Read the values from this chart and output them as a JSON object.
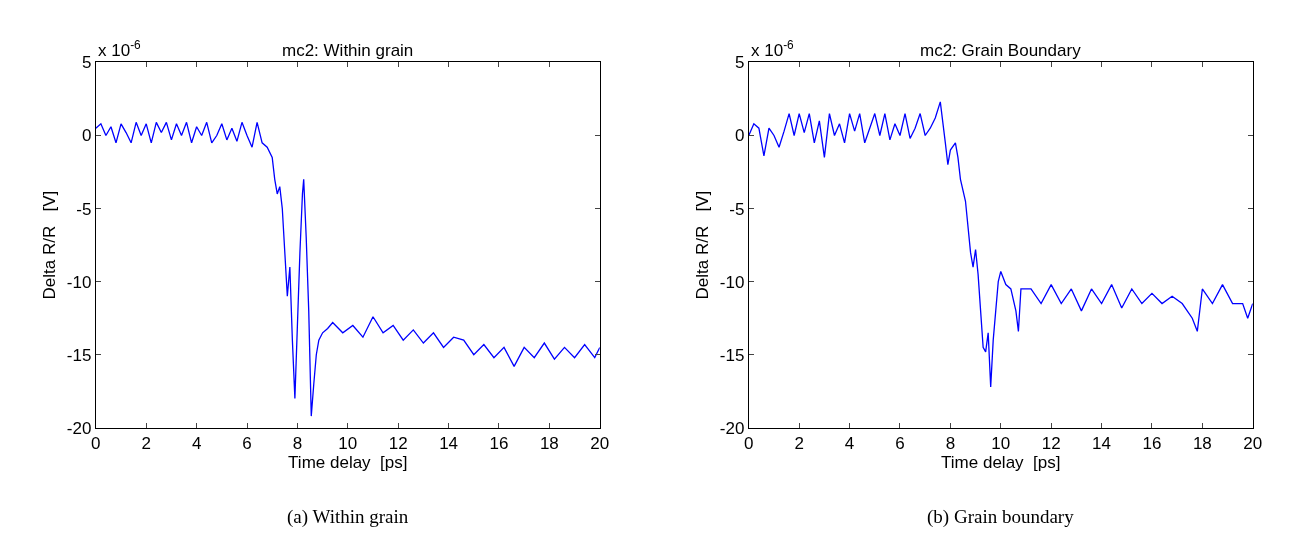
{
  "chart_data": [
    {
      "type": "line",
      "title": "mc2: Within grain",
      "xlabel": "Time delay  [ps]",
      "ylabel": "Delta R/R   [V]",
      "annotations": [
        "x 10$^{-6}$",
        "(a) Within grain"
      ],
      "xlim": [
        0,
        20
      ],
      "xticks": [
        0,
        2,
        4,
        6,
        8,
        10,
        12,
        14,
        16,
        18,
        20
      ],
      "ylim": [
        -20,
        5
      ],
      "yticks": [
        -20,
        -15,
        -10,
        -5,
        0,
        5
      ],
      "marker": "none",
      "line_style": "solid",
      "series": [
        {
          "color": "#0000ff",
          "x": [
            0,
            0.2,
            0.4,
            0.6,
            0.8,
            1.0,
            1.2,
            1.4,
            1.6,
            1.8,
            2.0,
            2.2,
            2.4,
            2.6,
            2.8,
            3.0,
            3.2,
            3.4,
            3.6,
            3.8,
            4.0,
            4.2,
            4.4,
            4.6,
            4.8,
            5.0,
            5.2,
            5.4,
            5.6,
            5.8,
            6.0,
            6.2,
            6.4,
            6.6,
            6.8,
            7.0,
            7.1,
            7.2,
            7.3,
            7.4,
            7.5,
            7.6,
            7.7,
            7.8,
            7.9,
            8.0,
            8.1,
            8.2,
            8.25,
            8.35,
            8.45,
            8.55,
            8.65,
            8.75,
            8.85,
            9.0,
            9.2,
            9.4,
            9.8,
            10.2,
            10.6,
            11.0,
            11.4,
            11.8,
            12.2,
            12.6,
            13.0,
            13.4,
            13.8,
            14.2,
            14.6,
            15.0,
            15.4,
            15.8,
            16.2,
            16.6,
            17.0,
            17.4,
            17.8,
            18.2,
            18.6,
            19.0,
            19.4,
            19.8,
            20.0
          ],
          "values": [
            0.5,
            0.8,
            0,
            0.6,
            -0.5,
            0.8,
            0.2,
            -0.5,
            0.9,
            0,
            0.8,
            -0.5,
            0.9,
            0.2,
            0.9,
            -0.3,
            0.8,
            0,
            0.9,
            -0.5,
            0.6,
            0,
            0.9,
            -0.5,
            0,
            0.8,
            -0.3,
            0.5,
            -0.4,
            0.9,
            0,
            -0.8,
            0.9,
            -0.5,
            -0.8,
            -1.5,
            -3,
            -4,
            -3.5,
            -5,
            -8,
            -11,
            -9,
            -14,
            -18,
            -13,
            -8,
            -4,
            -3,
            -7,
            -12,
            -19.2,
            -17,
            -15,
            -14,
            -13.5,
            -13.2,
            -12.8,
            -13.5,
            -13,
            -13.8,
            -12.4,
            -13.5,
            -13,
            -14,
            -13.3,
            -14.2,
            -13.5,
            -14.5,
            -13.8,
            -14,
            -15,
            -14.3,
            -15.2,
            -14.5,
            -15.8,
            -14.5,
            -15.2,
            -14.2,
            -15.3,
            -14.5,
            -15.2,
            -14.3,
            -15.2,
            -14.5
          ]
        }
      ]
    },
    {
      "type": "line",
      "title": "mc2: Grain Boundary",
      "xlabel": "Time delay  [ps]",
      "ylabel": "Delta R/R   [V]",
      "annotations": [
        "x 10$^{-6}$",
        "(b) Grain boundary"
      ],
      "xlim": [
        0,
        20
      ],
      "xticks": [
        0,
        2,
        4,
        6,
        8,
        10,
        12,
        14,
        16,
        18,
        20
      ],
      "ylim": [
        -20,
        5
      ],
      "yticks": [
        -20,
        -15,
        -10,
        -5,
        0,
        5
      ],
      "marker": "none",
      "line_style": "solid",
      "series": [
        {
          "color": "#0000ff",
          "x": [
            0,
            0.2,
            0.4,
            0.6,
            0.8,
            1.0,
            1.2,
            1.4,
            1.6,
            1.8,
            2.0,
            2.2,
            2.4,
            2.6,
            2.8,
            3.0,
            3.2,
            3.4,
            3.6,
            3.8,
            4.0,
            4.2,
            4.4,
            4.6,
            4.8,
            5.0,
            5.2,
            5.4,
            5.6,
            5.8,
            6.0,
            6.2,
            6.4,
            6.6,
            6.8,
            7.0,
            7.2,
            7.4,
            7.6,
            7.8,
            7.9,
            8.0,
            8.2,
            8.3,
            8.4,
            8.6,
            8.8,
            8.9,
            9.0,
            9.1,
            9.2,
            9.3,
            9.4,
            9.5,
            9.6,
            9.7,
            9.8,
            9.9,
            10.0,
            10.2,
            10.4,
            10.6,
            10.7,
            10.8,
            11.2,
            11.6,
            12.0,
            12.4,
            12.8,
            13.2,
            13.6,
            14.0,
            14.4,
            14.8,
            15.2,
            15.6,
            16.0,
            16.4,
            16.8,
            17.2,
            17.6,
            17.8,
            18.0,
            18.4,
            18.8,
            19.2,
            19.6,
            19.8,
            20.0
          ],
          "values": [
            0,
            0.8,
            0.5,
            -1.4,
            0.5,
            0,
            -0.8,
            0.3,
            1.5,
            0,
            1.5,
            0.2,
            1.5,
            -0.5,
            1,
            -1.5,
            1.5,
            0,
            0.8,
            -0.5,
            1.5,
            0.3,
            1.5,
            -0.5,
            0.5,
            1.5,
            0,
            1.5,
            -0.3,
            0.8,
            0,
            1.5,
            -0.2,
            0.5,
            1.5,
            0,
            0.5,
            1.2,
            2.3,
            -0.5,
            -2,
            -1,
            -0.5,
            -1.5,
            -3,
            -4.5,
            -8,
            -9,
            -7.8,
            -9.5,
            -12,
            -14.5,
            -14.8,
            -13.5,
            -17.2,
            -14,
            -12,
            -10,
            -9.3,
            -10.2,
            -10.5,
            -12,
            -13.4,
            -10.5,
            -10.5,
            -11.5,
            -10.2,
            -11.5,
            -10.5,
            -12,
            -10.5,
            -11.5,
            -10.2,
            -11.8,
            -10.5,
            -11.5,
            -10.8,
            -11.5,
            -11,
            -11.5,
            -12.5,
            -13.4,
            -10.5,
            -11.5,
            -10.2,
            -11.5,
            -11.5,
            -12.5,
            -11.5
          ]
        }
      ]
    }
  ]
}
